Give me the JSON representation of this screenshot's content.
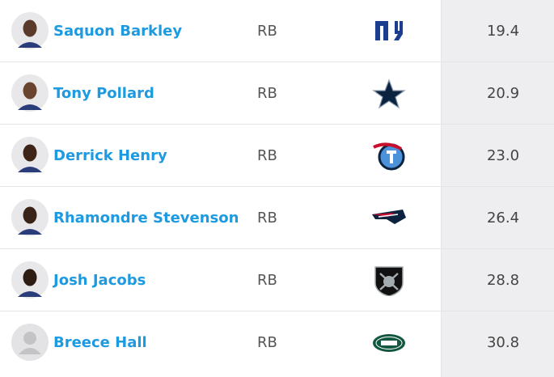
{
  "table": {
    "rows": [
      [
        "Saquon Barkley",
        "RB",
        "19.4"
      ],
      [
        "Tony Pollard",
        "RB",
        "20.9"
      ],
      [
        "Derrick Henry",
        "RB",
        "23.0"
      ],
      [
        "Rhamondre Stevenson",
        "RB",
        "26.4"
      ],
      [
        "Josh Jacobs",
        "RB",
        "28.8"
      ],
      [
        "Breece Hall",
        "RB",
        "30.8"
      ]
    ]
  }
}
